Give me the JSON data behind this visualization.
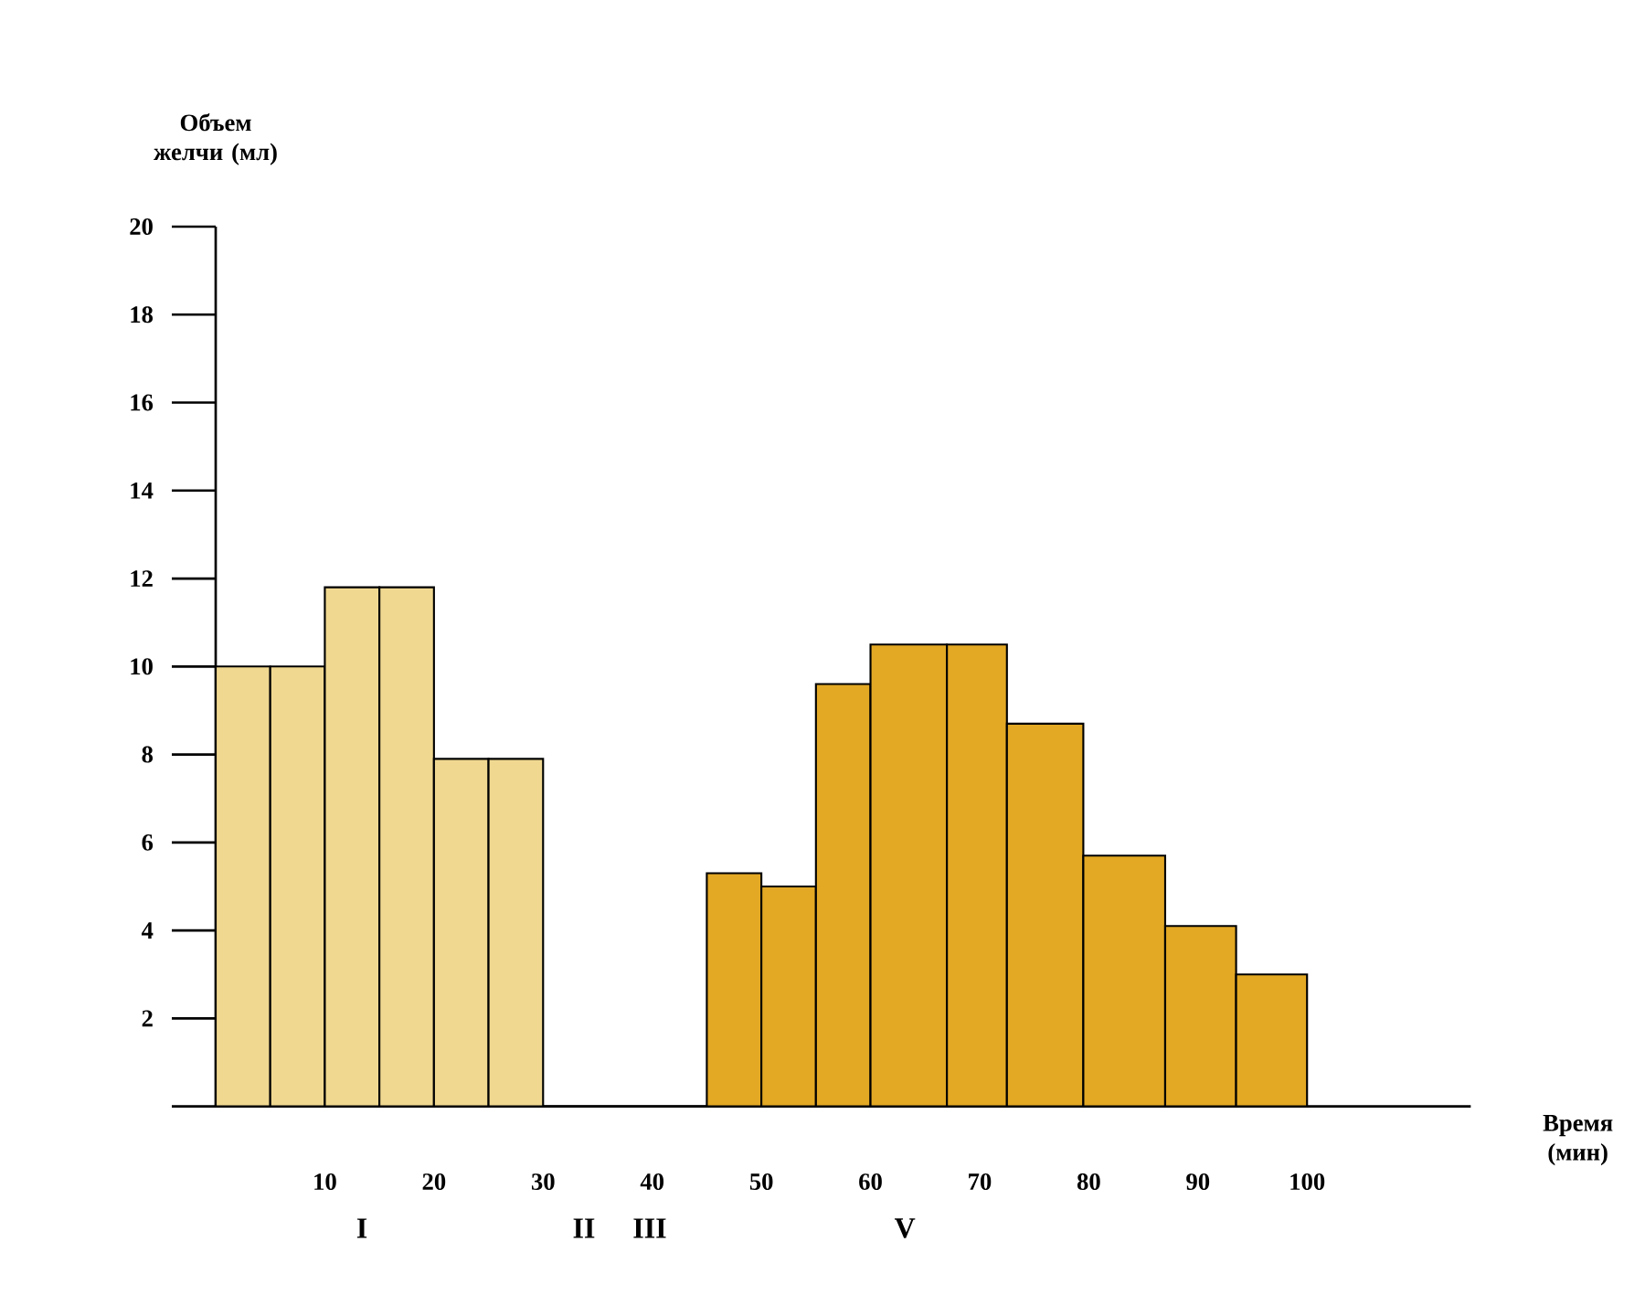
{
  "chart_data": {
    "type": "histogram",
    "xlabel": "Время (мин)",
    "ylabel": "Объем желчи (мл)",
    "bins": [
      0,
      5,
      10,
      15,
      20,
      25,
      30,
      45,
      50,
      55,
      60,
      67,
      72.5,
      79.5,
      87,
      93.5,
      100
    ],
    "values": [
      10,
      10,
      11.8,
      11.8,
      7.9,
      7.9,
      0,
      5.3,
      5.0,
      9.6,
      10.5,
      10.5,
      8.7,
      5.7,
      4.1,
      3.0
    ],
    "colors": [
      "#f0d890",
      "#f0d890",
      "#f0d890",
      "#f0d890",
      "#f0d890",
      "#f0d890",
      "#f0d890",
      "#e3a824",
      "#e3a824",
      "#e3a824",
      "#e3a824",
      "#e3a824",
      "#e3a824",
      "#e3a824",
      "#e3a824",
      "#e3a824"
    ],
    "xlim": [
      0,
      115
    ],
    "ylim": [
      0,
      20
    ],
    "xticks": [
      10,
      20,
      30,
      40,
      50,
      60,
      70,
      80,
      90,
      100
    ],
    "yticks": [
      {
        "value": 0,
        "label": null
      },
      2,
      4,
      6,
      8,
      10,
      12,
      14,
      16,
      18,
      20
    ],
    "grid": false,
    "annotations": [
      "I",
      "II",
      "III",
      "V"
    ]
  }
}
